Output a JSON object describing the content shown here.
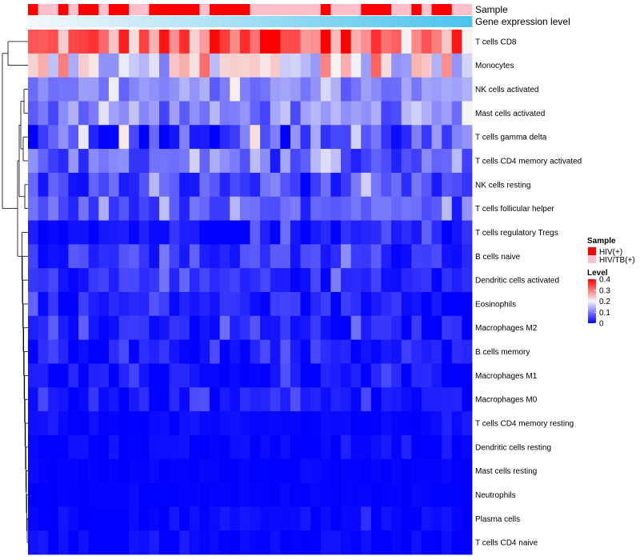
{
  "chart_data": {
    "type": "heatmap",
    "annotations": {
      "sample_label": "Sample",
      "expression_label": "Gene expression level"
    },
    "rows": [
      "T cells CD8",
      "Monocytes",
      "NK cells activated",
      "Mast cells activated",
      "T cells gamma delta",
      "T cells CD4 memory activated",
      "NK cells resting",
      "T cells follicular helper",
      "T cells regulatory  Tregs",
      "B cells naive",
      "Dendritic cells activated",
      "Eosinophils",
      "Macrophages M2",
      "B cells memory",
      "Macrophages M1",
      "Macrophages M0",
      "T cells CD4 memory resting",
      "Dendritic cells resting",
      "Mast cells resting",
      "Neutrophils",
      "Plasma cells",
      "T cells CD4 naive"
    ],
    "columns": 44,
    "sample_groups": [
      "HIV(+)",
      "HIV/TB(+)",
      "HIV/TB(+)",
      "HIV(+)",
      "HIV/TB(+)",
      "HIV(+)",
      "HIV(+)",
      "HIV/TB(+)",
      "HIV(+)",
      "HIV(+)",
      "HIV/TB(+)",
      "HIV/TB(+)",
      "HIV(+)",
      "HIV(+)",
      "HIV(+)",
      "HIV(+)",
      "HIV(+)",
      "HIV/TB(+)",
      "HIV(+)",
      "HIV(+)",
      "HIV(+)",
      "HIV(+)",
      "HIV/TB(+)",
      "HIV/TB(+)",
      "HIV/TB(+)",
      "HIV/TB(+)",
      "HIV/TB(+)",
      "HIV/TB(+)",
      "HIV/TB(+)",
      "HIV(+)",
      "HIV/TB(+)",
      "HIV/TB(+)",
      "HIV/TB(+)",
      "HIV(+)",
      "HIV(+)",
      "HIV(+)",
      "HIV/TB(+)",
      "HIV/TB(+)",
      "HIV(+)",
      "HIV/TB(+)",
      "HIV(+)",
      "HIV(+)",
      "HIV/TB(+)",
      "HIV/TB(+)"
    ],
    "row_profiles": [
      {
        "mean": 0.3,
        "spread": 0.1
      },
      {
        "mean": 0.2,
        "spread": 0.1
      },
      {
        "mean": 0.11,
        "spread": 0.04
      },
      {
        "mean": 0.1,
        "spread": 0.05
      },
      {
        "mean": 0.06,
        "spread": 0.07
      },
      {
        "mean": 0.07,
        "spread": 0.05
      },
      {
        "mean": 0.05,
        "spread": 0.05
      },
      {
        "mean": 0.06,
        "spread": 0.04
      },
      {
        "mean": 0.02,
        "spread": 0.03
      },
      {
        "mean": 0.04,
        "spread": 0.04
      },
      {
        "mean": 0.03,
        "spread": 0.03
      },
      {
        "mean": 0.025,
        "spread": 0.03
      },
      {
        "mean": 0.02,
        "spread": 0.03
      },
      {
        "mean": 0.015,
        "spread": 0.025
      },
      {
        "mean": 0.01,
        "spread": 0.025
      },
      {
        "mean": 0.012,
        "spread": 0.025
      },
      {
        "mean": 0.004,
        "spread": 0.01
      },
      {
        "mean": 0.004,
        "spread": 0.01
      },
      {
        "mean": 0.001,
        "spread": 0.004
      },
      {
        "mean": 0.001,
        "spread": 0.003
      },
      {
        "mean": 0.006,
        "spread": 0.015
      },
      {
        "mean": 0.004,
        "spread": 0.012
      }
    ],
    "color_scale": {
      "min": 0,
      "max": 0.4,
      "colors": [
        "#0000ff",
        "#f7f7f7",
        "#ff0000"
      ],
      "ticks": [
        "0",
        "0.1",
        "0.2",
        "0.3",
        "0.4"
      ]
    },
    "legend": {
      "sample_title": "Sample",
      "sample_entries": [
        {
          "label": "HIV(+)",
          "color": "#ff0000"
        },
        {
          "label": "HIV/TB(+)",
          "color": "#ffc0cb"
        }
      ],
      "level_title": "Level"
    },
    "expression_gradient": [
      "#f4f8fb",
      "#4cc4ee"
    ]
  }
}
